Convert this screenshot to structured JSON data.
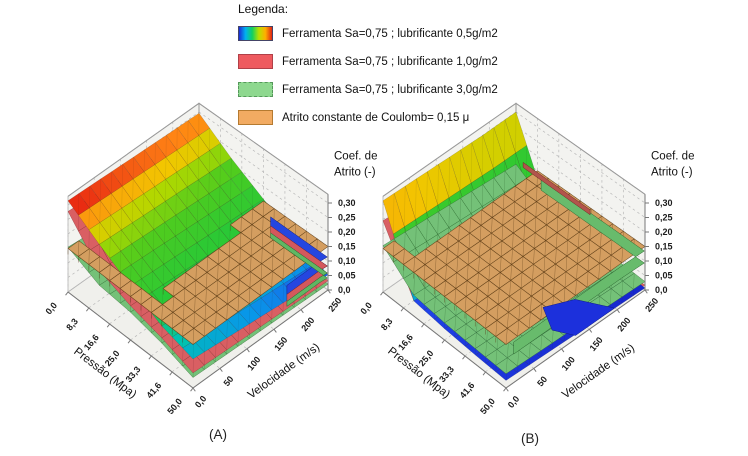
{
  "legend": {
    "title": "Legenda:",
    "items": [
      {
        "label": "Ferramenta Sa=0,75 ; lubrificante 0,5g/m2",
        "swatch": "rainbow-gradient",
        "colors": [
          "#1a2bd6",
          "#00b2f0",
          "#10d060",
          "#b8e000",
          "#ffae00",
          "#e02414"
        ],
        "border": "#444466"
      },
      {
        "label": "Ferramenta Sa=0,75 ; lubrificante 1,0g/m2",
        "swatch": "solid",
        "color": "#ee5a5f",
        "border": "#b04048"
      },
      {
        "label": "Ferramenta Sa=0,75 ; lubrificante 3,0g/m2",
        "swatch": "solid",
        "color": "#8ed88f",
        "border": "#55985a"
      },
      {
        "label": "Atrito constante de Coulomb= 0,15 μ",
        "swatch": "solid",
        "color": "#f2ab62",
        "border": "#b57a30"
      }
    ]
  },
  "chart_data": {
    "type": "surface3d",
    "colormap": [
      [
        0.0,
        "#1420c8"
      ],
      [
        0.05,
        "#2146ea"
      ],
      [
        0.085,
        "#0898e8"
      ],
      [
        0.115,
        "#00c4ae"
      ],
      [
        0.15,
        "#26c838"
      ],
      [
        0.21,
        "#50cc1e"
      ],
      [
        0.245,
        "#b0d800"
      ],
      [
        0.266,
        "#f2c600"
      ],
      [
        0.287,
        "#ff8414"
      ],
      [
        0.305,
        "#e62012"
      ],
      [
        0.33,
        "#c01010"
      ]
    ],
    "plots": [
      {
        "caption": "(A)",
        "x_axis": {
          "title": "Pressão (Mpa)",
          "ticks": [
            "0,0",
            "8,3",
            "16,6",
            "25,0",
            "33,3",
            "41,6",
            "50,0"
          ],
          "values": [
            0,
            8.3,
            16.6,
            25,
            33.3,
            41.6,
            50
          ]
        },
        "y_axis": {
          "title": "Velocidade (m/s)",
          "ticks": [
            "0,0",
            "50",
            "100",
            "150",
            "200",
            "250"
          ],
          "values": [
            0,
            50,
            100,
            150,
            200,
            250
          ]
        },
        "z_axis": {
          "title_lines": [
            "Coef. de",
            "Atrito (-)"
          ],
          "ticks": [
            "0,0",
            "0,05",
            "0,10",
            "0,15",
            "0,20",
            "0,25",
            "0,30"
          ],
          "values": [
            0,
            0.05,
            0.1,
            0.15,
            0.2,
            0.25,
            0.3
          ],
          "range": [
            0,
            0.3
          ]
        },
        "surfaces": [
          {
            "id": "lub05",
            "series": "Ferramenta Sa=0,75 ; lubrificante 0,5g/m2",
            "style": "rainbow",
            "p_values": [
              0,
              12.5,
              25,
              37.5,
              50
            ],
            "v_values": [
              0,
              62.5,
              125,
              187.5,
              250
            ],
            "z": [
              [
                0.315,
                0.31,
                0.305,
                0.3,
                0.296
              ],
              [
                0.247,
                0.24,
                0.233,
                0.226,
                0.219
              ],
              [
                0.186,
                0.179,
                0.171,
                0.163,
                0.156
              ],
              [
                0.131,
                0.124,
                0.117,
                0.11,
                0.103
              ],
              [
                0.1,
                0.088,
                0.076,
                0.064,
                0.052
              ]
            ]
          },
          {
            "id": "lub10",
            "series": "Ferramenta Sa=0,75 ; lubrificante 1,0g/m2",
            "style": "flat",
            "color": "#d95f63",
            "p_values": [
              0,
              12.5,
              25,
              37.5,
              50
            ],
            "v_values": [
              0,
              62.5,
              125,
              187.5,
              250
            ],
            "z": [
              [
                0.278,
                0.268,
                0.258,
                0.249,
                0.24
              ],
              [
                0.157,
                0.148,
                0.139,
                0.13,
                0.122
              ],
              [
                0.118,
                0.111,
                0.104,
                0.098,
                0.093
              ],
              [
                0.09,
                0.085,
                0.08,
                0.075,
                0.07
              ],
              [
                0.052,
                0.047,
                0.042,
                0.037,
                0.032
              ]
            ]
          },
          {
            "id": "lub30",
            "series": "Ferramenta Sa=0,75 ; lubrificante 3,0g/m2",
            "style": "flat",
            "color": "#74c178",
            "p_values": [
              0,
              12.5,
              25,
              37.5,
              50
            ],
            "v_values": [
              0,
              62.5,
              125,
              187.5,
              250
            ],
            "z": [
              [
                0.155,
                0.143,
                0.132,
                0.121,
                0.11
              ],
              [
                0.106,
                0.098,
                0.091,
                0.084,
                0.077
              ],
              [
                0.096,
                0.089,
                0.082,
                0.075,
                0.068
              ],
              [
                0.072,
                0.067,
                0.062,
                0.057,
                0.052
              ],
              [
                0.036,
                0.032,
                0.028,
                0.024,
                0.02
              ]
            ]
          },
          {
            "id": "coulomb",
            "series": "Atrito constante de Coulomb= 0,15 μ",
            "style": "flat",
            "color": "#d49e60",
            "z": 0.15
          }
        ]
      },
      {
        "caption": "(B)",
        "x_axis": {
          "title": "Pressão (Mpa)",
          "ticks": [
            "0,0",
            "8,3",
            "16,6",
            "25,0",
            "33,3",
            "41,6",
            "50,0"
          ],
          "values": [
            0,
            8.3,
            16.6,
            25,
            33.3,
            41.6,
            50
          ]
        },
        "y_axis": {
          "title": "Velocidade (m/s)",
          "ticks": [
            "0,0",
            "50",
            "100",
            "150",
            "200",
            "250"
          ],
          "values": [
            0,
            50,
            100,
            150,
            200,
            250
          ]
        },
        "z_axis": {
          "title_lines": [
            "Coef. de",
            "Atrito (-)"
          ],
          "ticks": [
            "0,0",
            "0,05",
            "0,10",
            "0,15",
            "0,20",
            "0,25",
            "0,30"
          ],
          "values": [
            0,
            0.05,
            0.1,
            0.15,
            0.2,
            0.25,
            0.3
          ],
          "range": [
            0,
            0.3
          ]
        },
        "surfaces": [
          {
            "id": "lub10",
            "series": "Ferramenta Sa=0,75 ; lubrificante 1,0g/m2",
            "style": "flat",
            "color": "#d95f63",
            "p_values": [
              0,
              12.5,
              25,
              37.5,
              50
            ],
            "v_values": [
              0,
              62.5,
              125,
              187.5,
              250
            ],
            "z": [
              [
                0.246,
                0.236,
                0.226,
                0.216,
                0.206
              ],
              [
                0.053,
                0.048,
                0.044,
                0.04,
                0.036
              ],
              [
                0.041,
                0.037,
                0.033,
                0.03,
                0.027
              ],
              [
                0.035,
                0.031,
                0.028,
                0.025,
                0.022
              ],
              [
                0.031,
                0.027,
                0.024,
                0.02,
                0.017
              ]
            ]
          },
          {
            "id": "lub05",
            "series": "Ferramenta Sa=0,75 ; lubrificante 0,5g/m2",
            "style": "rainbow",
            "p_values": [
              0,
              12.5,
              25,
              37.5,
              50
            ],
            "v_values": [
              0,
              62.5,
              125,
              187.5,
              250
            ],
            "z": [
              [
                0.315,
                0.31,
                0.305,
                0.3,
                0.3
              ],
              [
                0.052,
                0.046,
                0.041,
                0.037,
                0.033
              ],
              [
                0.039,
                0.033,
                0.029,
                0.025,
                0.021
              ],
              [
                0.031,
                0.027,
                0.023,
                0.019,
                0.015
              ],
              [
                0.026,
                0.021,
                0.016,
                0.011,
                0.007
              ]
            ]
          },
          {
            "id": "lub30",
            "series": "Ferramenta Sa=0,75 ; lubrificante 3,0g/m2",
            "style": "flat",
            "color": "#74c178",
            "p_values": [
              0,
              12.5,
              25,
              37.5,
              50
            ],
            "v_values": [
              0,
              62.5,
              125,
              187.5,
              250
            ],
            "z": [
              [
                0.16,
                0.15,
                0.14,
                0.13,
                0.12
              ],
              [
                0.072,
                0.064,
                0.059,
                0.055,
                0.051
              ],
              [
                0.059,
                0.053,
                0.049,
                0.045,
                0.041
              ],
              [
                0.053,
                0.048,
                0.044,
                0.04,
                0.036
              ],
              [
                0.049,
                0.044,
                0.04,
                0.034,
                0.029
              ]
            ]
          },
          {
            "id": "coulomb",
            "series": "Atrito constante de Coulomb= 0,15 μ",
            "style": "flat",
            "color": "#d49e60",
            "z": 0.15
          }
        ]
      }
    ]
  }
}
